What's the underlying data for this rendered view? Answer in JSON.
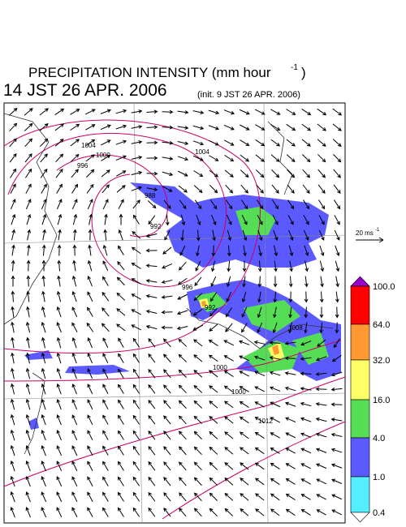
{
  "header": {
    "title": "PRECIPITATION INTENSITY (mm hour",
    "title_exponent": "-1",
    "title_close": ")",
    "time": "14 JST 26 APR. 2006",
    "init": "(init. 9 JST 26 APR. 2006)"
  },
  "scale_arrow": {
    "label": "20 ms",
    "exponent": "-1"
  },
  "colorbar": {
    "labels": [
      "100.0",
      "64.0",
      "32.0",
      "16.0",
      "4.0",
      "1.0",
      "0.4"
    ],
    "colors": [
      "#9900cc",
      "#ff0000",
      "#ff9933",
      "#ffff66",
      "#55dd55",
      "#5a5aff",
      "#55eeff",
      "#ffffff"
    ]
  },
  "contour_labels": [
    "1004",
    "1000",
    "996",
    "988",
    "992",
    "996",
    "992",
    "1000",
    "1000",
    "1008",
    "1012",
    "1004"
  ]
}
